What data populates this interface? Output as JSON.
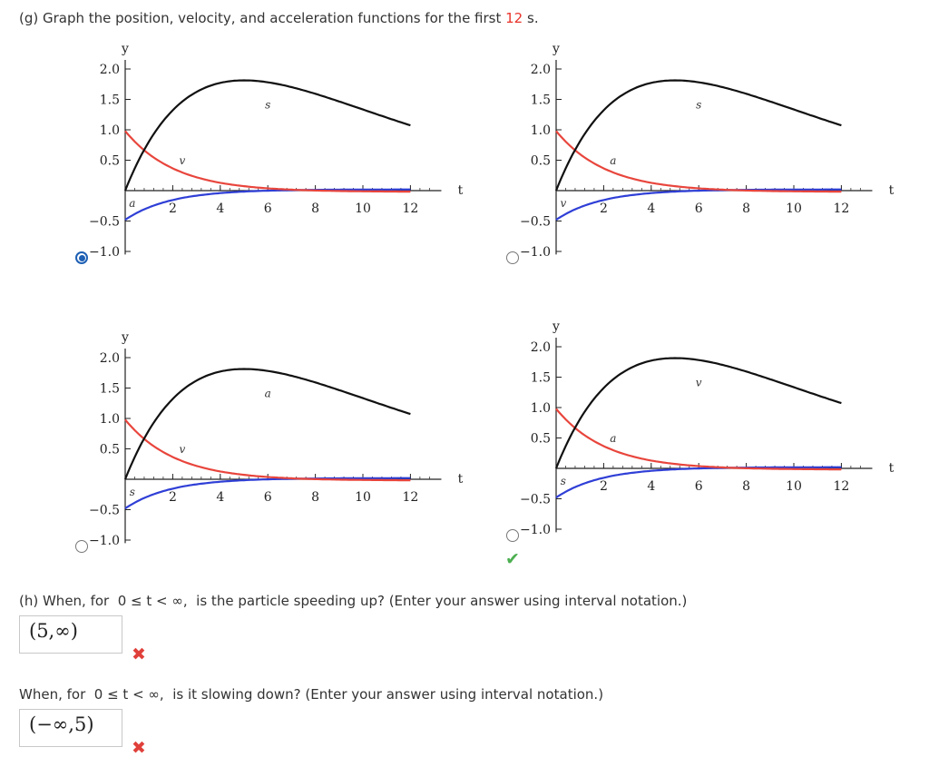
{
  "question_g": {
    "text_before": "(g) Graph the position, velocity, and acceleration functions for the first ",
    "highlight": "12",
    "text_after": " s."
  },
  "graph_common": {
    "y_axis_label": "y",
    "x_axis_label": "t",
    "y_ticks": [
      "2.0",
      "1.5",
      "1.0",
      "0.5",
      "−0.5",
      "−1.0"
    ],
    "x_ticks": [
      "2",
      "4",
      "6",
      "8",
      "10",
      "12"
    ]
  },
  "options": [
    {
      "id": "a",
      "selected": true,
      "black_label": "s",
      "red_label": "v",
      "blue_label": "a"
    },
    {
      "id": "b",
      "selected": false,
      "black_label": "s",
      "red_label": "a",
      "blue_label": "v"
    },
    {
      "id": "c",
      "selected": false,
      "black_label": "a",
      "red_label": "v",
      "blue_label": "s"
    },
    {
      "id": "d",
      "selected": false,
      "black_label": "v",
      "red_label": "a",
      "blue_label": "s"
    }
  ],
  "g_result": "correct",
  "question_h": {
    "prompt": "(h) When, for  0 ≤ t < ∞,  is the particle speeding up? (Enter your answer using interval notation.)",
    "answer": "(5,∞)",
    "result": "incorrect"
  },
  "question_slow": {
    "prompt": "When, for  0 ≤ t < ∞,  is it slowing down? (Enter your answer using interval notation.)",
    "answer": "(−∞,5)",
    "result": "incorrect"
  },
  "colors": {
    "black_curve": "#111111",
    "red_curve": "#e8453c",
    "blue_curve": "#2f3fd6",
    "selected_radio": "#1d5fb4"
  },
  "icons": {
    "incorrect": "x-mark-icon",
    "correct": "check-mark-icon"
  }
}
